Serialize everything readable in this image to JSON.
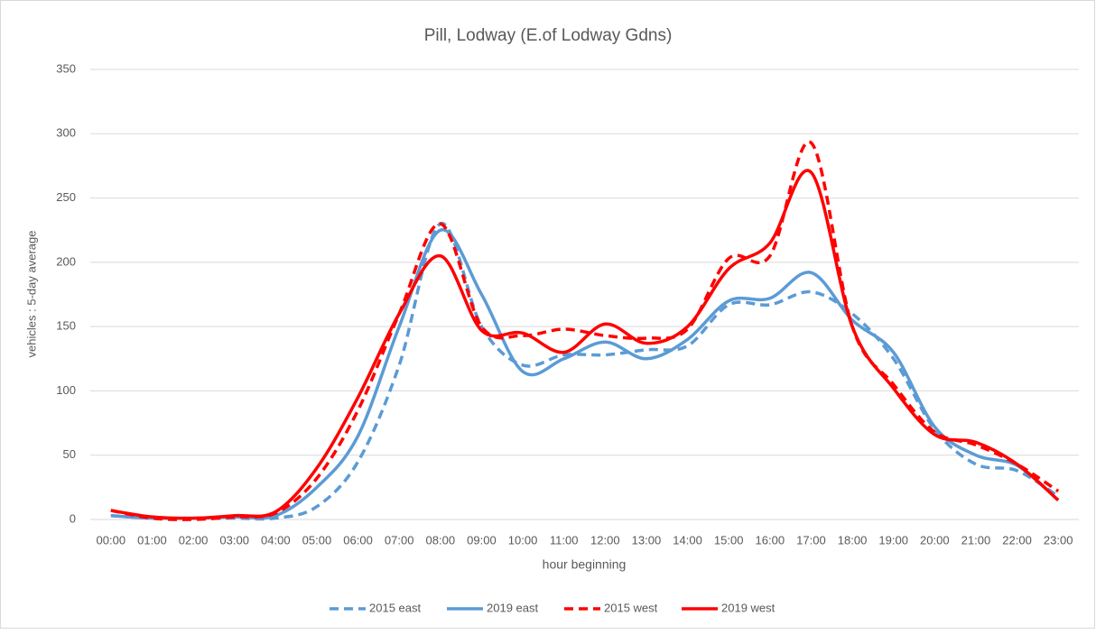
{
  "chart_data": {
    "type": "line",
    "title": "Pill, Lodway (E.of Lodway Gdns)",
    "x_label": "hour beginning",
    "y_label": "vehicles : 5-day average",
    "categories": [
      "00:00",
      "01:00",
      "02:00",
      "03:00",
      "04:00",
      "05:00",
      "06:00",
      "07:00",
      "08:00",
      "09:00",
      "10:00",
      "11:00",
      "12:00",
      "13:00",
      "14:00",
      "15:00",
      "16:00",
      "17:00",
      "18:00",
      "19:00",
      "20:00",
      "21:00",
      "22:00",
      "23:00"
    ],
    "series": [
      {
        "name": "2015 east",
        "color": "#5b9bd5",
        "dashed": true,
        "values": [
          3,
          1,
          1,
          1,
          1,
          10,
          45,
          120,
          230,
          150,
          120,
          128,
          128,
          132,
          135,
          167,
          167,
          177,
          160,
          125,
          70,
          43,
          38,
          18
        ]
      },
      {
        "name": "2019 east",
        "color": "#5b9bd5",
        "dashed": false,
        "values": [
          3,
          1,
          1,
          2,
          3,
          25,
          65,
          150,
          225,
          175,
          115,
          125,
          138,
          125,
          140,
          170,
          172,
          192,
          155,
          130,
          72,
          50,
          42,
          15
        ]
      },
      {
        "name": "2015 west",
        "color": "#ff0000",
        "dashed": true,
        "values": [
          7,
          1,
          0,
          2,
          5,
          32,
          85,
          160,
          230,
          150,
          143,
          148,
          143,
          141,
          148,
          203,
          205,
          293,
          150,
          105,
          68,
          58,
          43,
          22
        ]
      },
      {
        "name": "2019 west",
        "color": "#ff0000",
        "dashed": false,
        "values": [
          7,
          2,
          1,
          3,
          6,
          40,
          95,
          160,
          205,
          147,
          145,
          130,
          152,
          137,
          150,
          195,
          215,
          270,
          150,
          102,
          66,
          60,
          43,
          15
        ]
      }
    ],
    "ylim": [
      0,
      350
    ],
    "yticks": [
      0,
      50,
      100,
      150,
      200,
      250,
      300,
      350
    ],
    "grid": true,
    "legend": "bottom"
  }
}
